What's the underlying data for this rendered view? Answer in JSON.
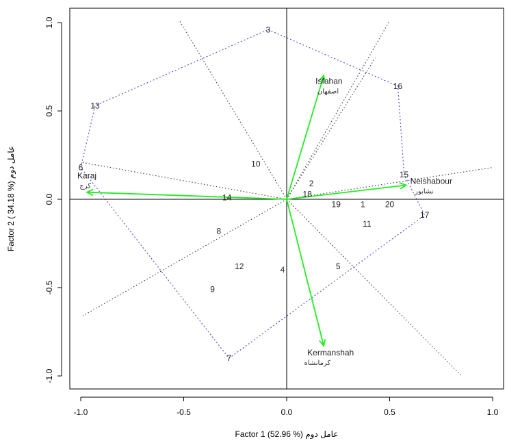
{
  "chart_data": {
    "type": "scatter",
    "title": "",
    "xlabel": "Factor 1 (52.96 %) عامل دوم",
    "ylabel": "Factor 2 ( 34.18 %) عامل دوم",
    "xlim": [
      -1.0,
      1.0
    ],
    "ylim": [
      -1.0,
      1.0
    ],
    "x_ticks": [
      "-1.0",
      "-0.5",
      "0.0",
      "0.5",
      "1.0"
    ],
    "y_ticks": [
      "-1.0",
      "-0.5",
      "0.0",
      "0.5",
      "1.0"
    ],
    "grid": false,
    "points": [
      {
        "label": "1",
        "x": 0.37,
        "y": -0.03
      },
      {
        "label": "2",
        "x": 0.12,
        "y": 0.09
      },
      {
        "label": "3",
        "x": -0.09,
        "y": 0.96
      },
      {
        "label": "4",
        "x": -0.02,
        "y": -0.4
      },
      {
        "label": "5",
        "x": 0.25,
        "y": -0.38
      },
      {
        "label": "6",
        "x": -1.0,
        "y": 0.18
      },
      {
        "label": "7",
        "x": -0.28,
        "y": -0.9
      },
      {
        "label": "8",
        "x": -0.33,
        "y": -0.18
      },
      {
        "label": "9",
        "x": -0.36,
        "y": -0.51
      },
      {
        "label": "10",
        "x": -0.15,
        "y": 0.2
      },
      {
        "label": "11",
        "x": 0.39,
        "y": -0.14
      },
      {
        "label": "12",
        "x": -0.23,
        "y": -0.38
      },
      {
        "label": "13",
        "x": -0.93,
        "y": 0.53
      },
      {
        "label": "14",
        "x": -0.29,
        "y": 0.01
      },
      {
        "label": "15",
        "x": 0.57,
        "y": 0.14
      },
      {
        "label": "16",
        "x": 0.54,
        "y": 0.64
      },
      {
        "label": "17",
        "x": 0.67,
        "y": -0.09
      },
      {
        "label": "18",
        "x": 0.1,
        "y": 0.03
      },
      {
        "label": "19",
        "x": 0.24,
        "y": -0.03
      },
      {
        "label": "20",
        "x": 0.5,
        "y": -0.03
      }
    ],
    "arrows": [
      {
        "name": "Isfahan",
        "name_fa": "اصفهان",
        "x": 0.18,
        "y": 0.7
      },
      {
        "name": "Karaj",
        "name_fa": "کرج",
        "x": -0.97,
        "y": 0.04
      },
      {
        "name": "Neishabour",
        "name_fa": "نشابور",
        "x": 0.58,
        "y": 0.08
      },
      {
        "name": "Kermanshah",
        "name_fa": "کرمانشاه",
        "x": 0.18,
        "y": -0.83
      }
    ],
    "hull": [
      "3",
      "16",
      "15",
      "17",
      "7",
      "6",
      "13"
    ],
    "sector_lines": [
      {
        "from": [
          0,
          0
        ],
        "to": [
          -0.52,
          1.01
        ]
      },
      {
        "from": [
          0,
          0
        ],
        "to": [
          0.5,
          1.01
        ]
      },
      {
        "from": [
          0,
          0
        ],
        "to": [
          0.43,
          0.8
        ]
      },
      {
        "from": [
          0,
          0
        ],
        "to": [
          1.0,
          0.18
        ]
      },
      {
        "from": [
          0,
          0
        ],
        "to": [
          0.85,
          -1.0
        ]
      },
      {
        "from": [
          0,
          0
        ],
        "to": [
          -0.99,
          -0.66
        ]
      },
      {
        "from": [
          0,
          0
        ],
        "to": [
          -1.0,
          0.21
        ]
      }
    ],
    "colors": {
      "arrow": "#22ee22",
      "hull": "#5555dd",
      "sector": "#444444",
      "axis_zero": "#000000"
    }
  }
}
